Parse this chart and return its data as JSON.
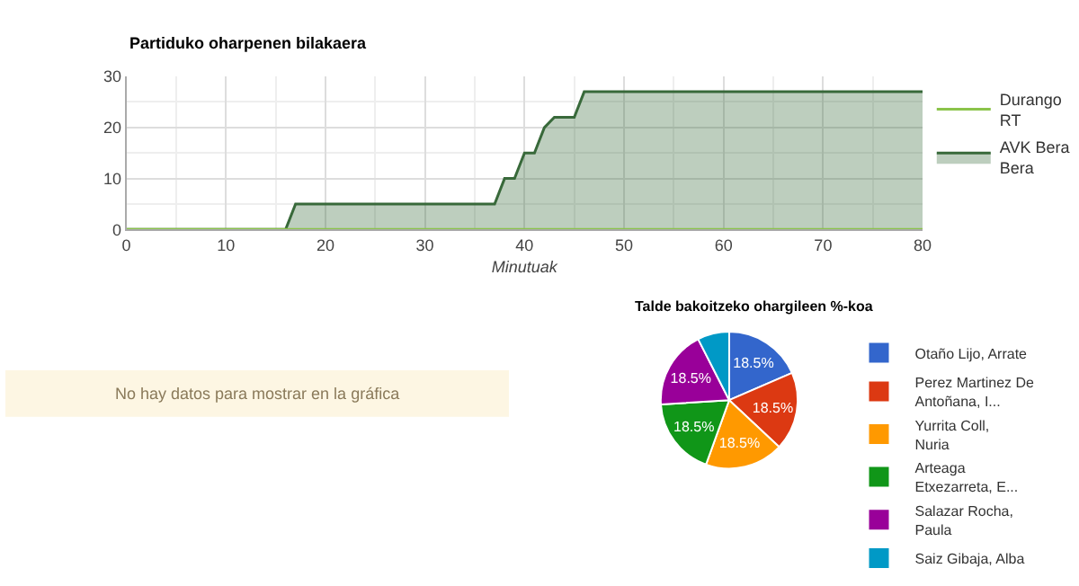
{
  "chart_data": [
    {
      "type": "area",
      "title": "Partiduko oharpenen bilakaera",
      "xlabel": "Minutuak",
      "xlim": [
        0,
        80
      ],
      "xticks": [
        0,
        10,
        20,
        30,
        40,
        50,
        60,
        70,
        80
      ],
      "ylim": [
        0,
        30
      ],
      "yticks": [
        0,
        10,
        20,
        30
      ],
      "grid": true,
      "legend": "top right",
      "series": [
        {
          "name": "Durango RT",
          "type": "line",
          "color": "#8bc34a",
          "x": [
            0,
            80
          ],
          "values": [
            0,
            0
          ]
        },
        {
          "name": "AVK Bera Bera",
          "color": "#38693a",
          "x": [
            0,
            16,
            17,
            37,
            38,
            39,
            40,
            41,
            42,
            43,
            45,
            46,
            80
          ],
          "values": [
            0,
            0,
            5,
            5,
            10,
            10,
            15,
            15,
            20,
            22,
            22,
            27,
            27
          ]
        }
      ]
    },
    {
      "type": "other",
      "annotations": [
        "No hay datos para mostrar en la gráfica"
      ]
    },
    {
      "type": "pie",
      "title": "Talde bakoitzeko ohargileen %-koa",
      "legend": "right",
      "categories": [
        "Otaño Lijo, Arrate",
        "Perez Martinez De Antoñana, I...",
        "Yurrita Coll, Nuria",
        "Arteaga Etxezarreta, E...",
        "Salazar Rocha, Paula",
        "Saiz Gibaja, Alba"
      ],
      "values": [
        18.5,
        18.5,
        18.5,
        18.5,
        18.5,
        7.5
      ],
      "value_labels": [
        "18.5%",
        "18.5%",
        "18.5%",
        "18.5%",
        "18.5%",
        null
      ],
      "colors": [
        "#3366cc",
        "#dc3912",
        "#ff9900",
        "#109618",
        "#990099",
        "#0099c6"
      ]
    }
  ]
}
